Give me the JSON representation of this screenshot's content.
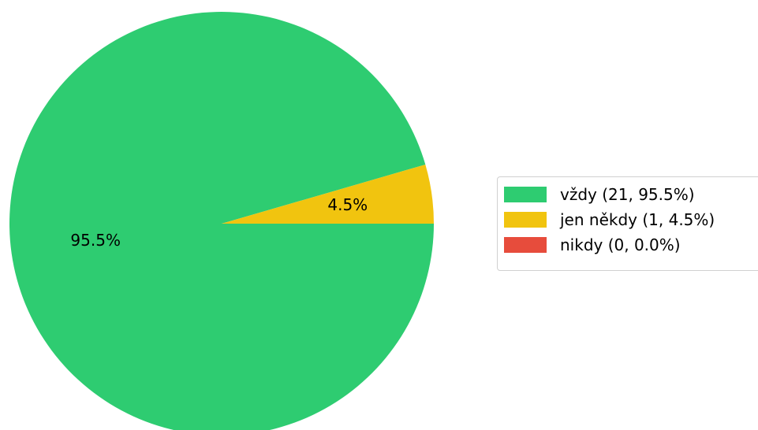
{
  "chart_data": {
    "type": "pie",
    "title": "",
    "slices": [
      {
        "label": "vždy",
        "count": 21,
        "percent": 95.5,
        "pct_text": "95.5%",
        "legend_text": "vždy (21, 95.5%)",
        "color": "#2ecc71"
      },
      {
        "label": "jen někdy",
        "count": 1,
        "percent": 4.5,
        "pct_text": "4.5%",
        "legend_text": "jen někdy (1, 4.5%)",
        "color": "#f1c40f"
      },
      {
        "label": "nikdy",
        "count": 0,
        "percent": 0.0,
        "pct_text": "",
        "legend_text": "nikdy (0, 0.0%)",
        "color": "#e74c3c"
      }
    ],
    "start_angle_deg": 0,
    "direction": "clockwise",
    "legend_position": "right"
  }
}
